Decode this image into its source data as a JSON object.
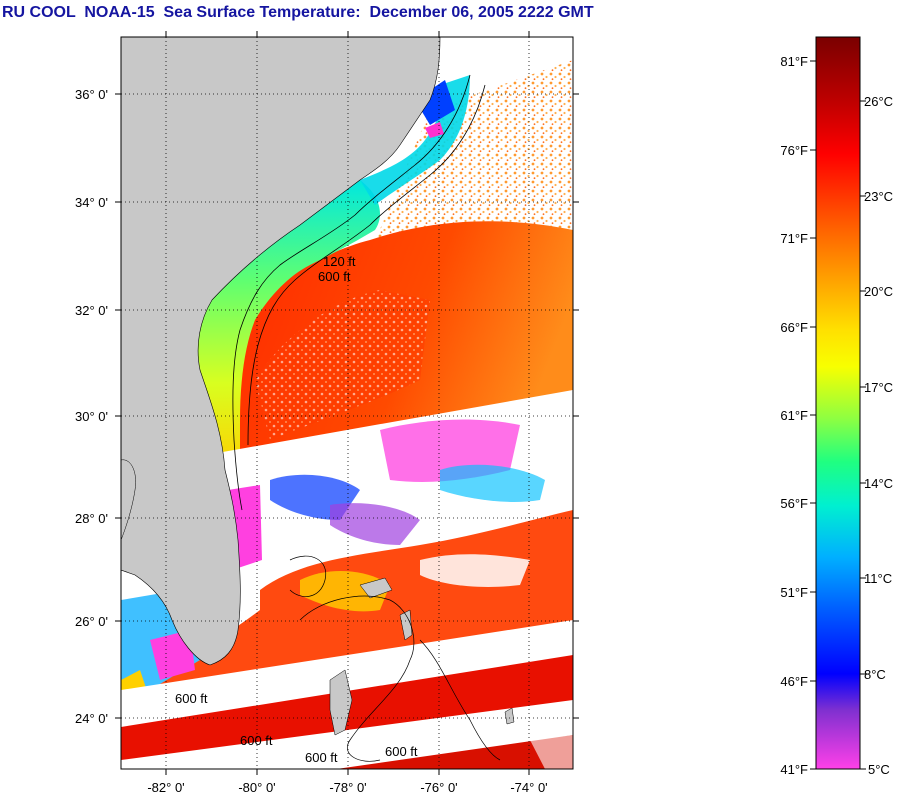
{
  "title": "RU COOL  NOAA-15  Sea Surface Temperature:  December 06, 2005 2222 GMT",
  "latitude_labels": [
    "36° 0'",
    "34° 0'",
    "32° 0'",
    "30° 0'",
    "28° 0'",
    "26° 0'",
    "24° 0'"
  ],
  "longitude_labels": [
    "-82° 0'",
    "-80° 0'",
    "-78° 0'",
    "-76° 0'",
    "-74° 0'"
  ],
  "colorbar": {
    "fahrenheit_labels": [
      "81°F",
      "76°F",
      "71°F",
      "66°F",
      "61°F",
      "56°F",
      "51°F",
      "46°F",
      "41°F"
    ],
    "celsius_labels": [
      "26°C",
      "23°C",
      "20°C",
      "17°C",
      "14°C",
      "11°C",
      "8°C",
      "5°C"
    ],
    "colors_top_to_bottom": [
      "#7a0000",
      "#b00000",
      "#ff0000",
      "#ff4000",
      "#ff8000",
      "#ffc000",
      "#ffff00",
      "#a0ff40",
      "#00ff90",
      "#00e0e0",
      "#00a0ff",
      "#0040ff",
      "#0000ff",
      "#8040d0",
      "#ff40e0"
    ]
  },
  "map": {
    "land_color": "#c8c8c8",
    "isobath_labels": [
      "120 ft",
      "600 ft",
      "600 ft",
      "600 ft",
      "600 ft",
      "600 ft"
    ]
  }
}
